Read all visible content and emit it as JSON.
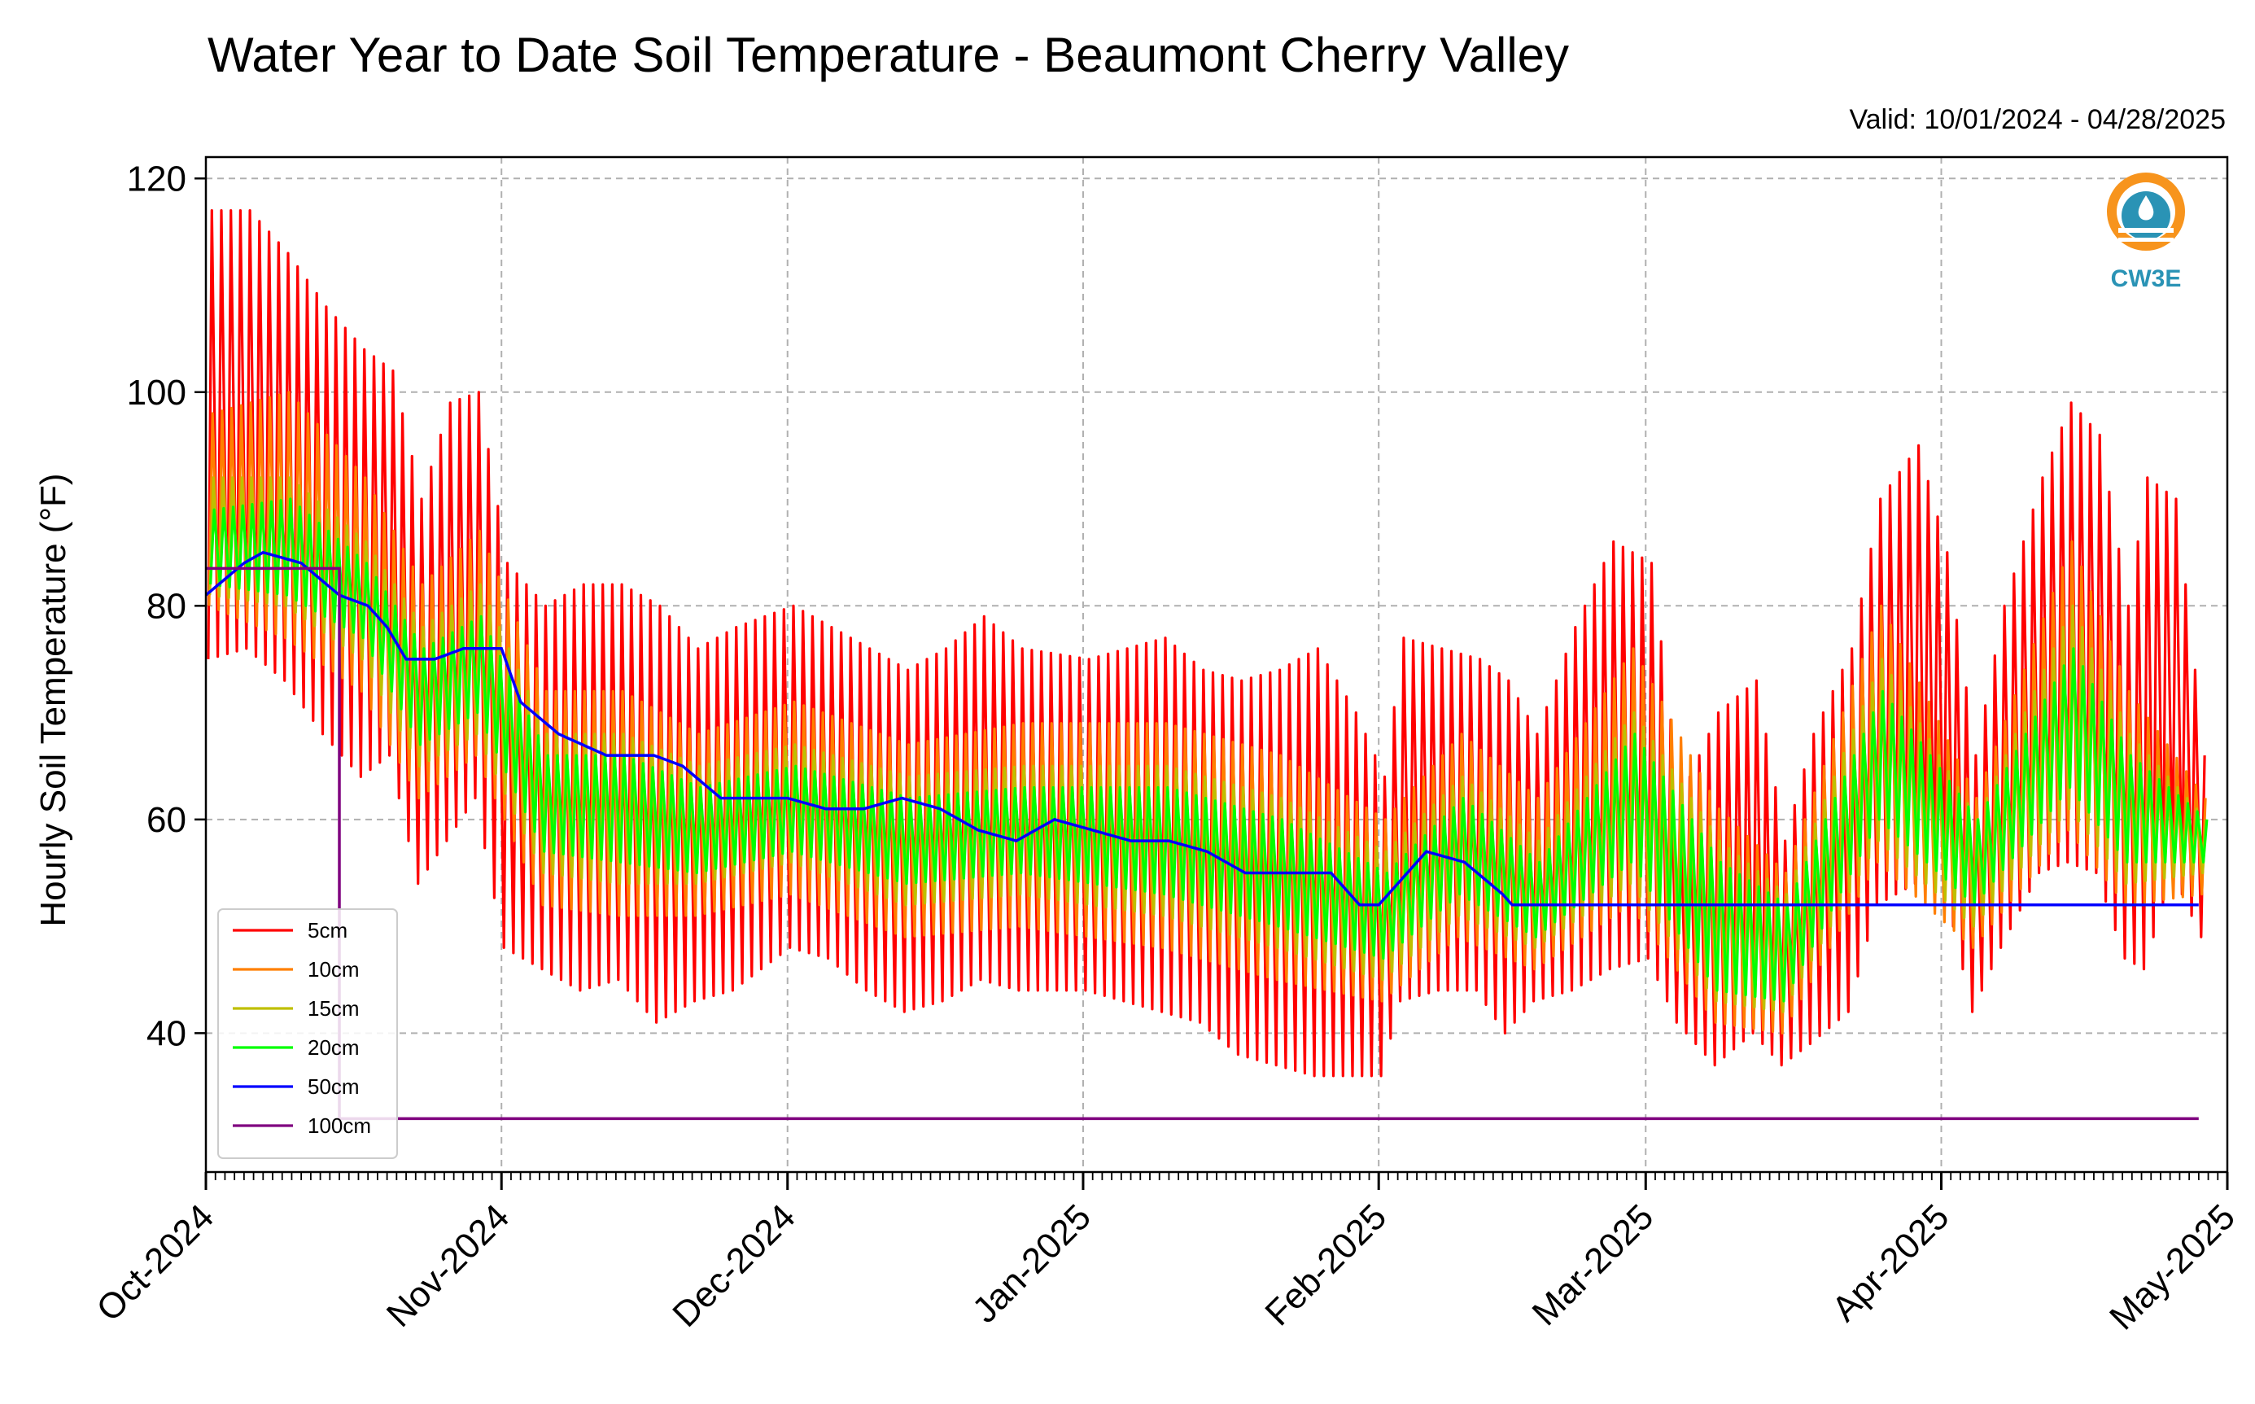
{
  "chart_data": {
    "type": "line",
    "title": "Water Year to Date Soil Temperature - Beaumont Cherry Valley",
    "subtitle": "Valid: 10/01/2024 - 04/28/2025",
    "ylabel": "Hourly Soil Temperature (°F)",
    "xlabel": "",
    "ylim": [
      27,
      122
    ],
    "xlim": [
      "2024-10-01",
      "2025-05-01"
    ],
    "yticks": [
      40,
      60,
      80,
      100,
      120
    ],
    "xticks": [
      "Oct-2024",
      "Nov-2024",
      "Dec-2024",
      "Jan-2025",
      "Feb-2025",
      "Mar-2025",
      "Apr-2025",
      "May-2025"
    ],
    "grid": true,
    "legend_position": "lower-left",
    "logo_text": "CW3E",
    "series_note": "Daily min/max envelope of hourly values (day index from Oct 1 2024)",
    "series": [
      {
        "name": "5cm",
        "color": "#ff0000",
        "daily": [
          [
            "2024-10-01",
            75,
            117
          ],
          [
            "2024-10-05",
            76,
            117
          ],
          [
            "2024-10-09",
            73,
            113
          ],
          [
            "2024-10-13",
            68,
            108
          ],
          [
            "2024-10-17",
            64,
            104
          ],
          [
            "2024-10-20",
            66,
            102
          ],
          [
            "2024-10-23",
            54,
            90
          ],
          [
            "2024-10-26",
            58,
            99
          ],
          [
            "2024-10-29",
            62,
            100
          ],
          [
            "2024-11-01",
            48,
            84
          ],
          [
            "2024-11-05",
            46,
            80
          ],
          [
            "2024-11-09",
            44,
            82
          ],
          [
            "2024-11-13",
            45,
            82
          ],
          [
            "2024-11-17",
            41,
            80
          ],
          [
            "2024-11-21",
            43,
            76
          ],
          [
            "2024-11-25",
            44,
            78
          ],
          [
            "2024-12-01",
            48,
            80
          ],
          [
            "2024-12-05",
            47,
            78
          ],
          [
            "2024-12-09",
            44,
            76
          ],
          [
            "2024-12-13",
            42,
            74
          ],
          [
            "2024-12-17",
            43,
            76
          ],
          [
            "2024-12-21",
            45,
            79
          ],
          [
            "2024-12-25",
            44,
            76
          ],
          [
            "2025-01-01",
            44,
            75
          ],
          [
            "2025-01-05",
            43,
            76
          ],
          [
            "2025-01-09",
            42,
            77
          ],
          [
            "2025-01-13",
            41,
            74
          ],
          [
            "2025-01-17",
            38,
            73
          ],
          [
            "2025-01-21",
            37,
            74
          ],
          [
            "2025-01-25",
            36,
            76
          ],
          [
            "2025-01-29",
            36,
            70
          ],
          [
            "2025-02-01",
            36,
            64
          ],
          [
            "2025-02-03",
            43,
            77
          ],
          [
            "2025-02-07",
            44,
            76
          ],
          [
            "2025-02-11",
            44,
            75
          ],
          [
            "2025-02-14",
            40,
            73
          ],
          [
            "2025-02-17",
            43,
            68
          ],
          [
            "2025-02-21",
            44,
            78
          ],
          [
            "2025-02-25",
            46,
            86
          ],
          [
            "2025-03-01",
            47,
            84
          ],
          [
            "2025-03-04",
            41,
            62
          ],
          [
            "2025-03-08",
            37,
            70
          ],
          [
            "2025-03-12",
            40,
            73
          ],
          [
            "2025-03-15",
            37,
            58
          ],
          [
            "2025-03-18",
            39,
            68
          ],
          [
            "2025-03-22",
            42,
            76
          ],
          [
            "2025-03-25",
            52,
            90
          ],
          [
            "2025-03-29",
            54,
            95
          ],
          [
            "2025-04-01",
            54,
            85
          ],
          [
            "2025-04-04",
            42,
            66
          ],
          [
            "2025-04-07",
            48,
            80
          ],
          [
            "2025-04-11",
            55,
            92
          ],
          [
            "2025-04-14",
            56,
            99
          ],
          [
            "2025-04-17",
            55,
            96
          ],
          [
            "2025-04-20",
            47,
            80
          ],
          [
            "2025-04-22",
            46,
            92
          ],
          [
            "2025-04-25",
            55,
            90
          ],
          [
            "2025-04-28",
            49,
            66
          ]
        ]
      },
      {
        "name": "10cm",
        "color": "#ff7f00",
        "daily": [
          [
            "2024-10-01",
            80,
            98
          ],
          [
            "2024-10-09",
            77,
            100
          ],
          [
            "2024-10-17",
            72,
            92
          ],
          [
            "2024-10-23",
            62,
            82
          ],
          [
            "2024-10-29",
            66,
            87
          ],
          [
            "2024-11-05",
            52,
            72
          ],
          [
            "2024-11-13",
            51,
            72
          ],
          [
            "2024-11-21",
            51,
            68
          ],
          [
            "2024-12-01",
            53,
            71
          ],
          [
            "2024-12-13",
            49,
            67
          ],
          [
            "2024-12-25",
            50,
            69
          ],
          [
            "2025-01-09",
            48,
            69
          ],
          [
            "2025-01-21",
            45,
            66
          ],
          [
            "2025-02-01",
            43,
            60
          ],
          [
            "2025-02-09",
            49,
            68
          ],
          [
            "2025-02-17",
            46,
            62
          ],
          [
            "2025-02-27",
            52,
            76
          ],
          [
            "2025-03-08",
            41,
            61
          ],
          [
            "2025-03-15",
            40,
            55
          ],
          [
            "2025-03-25",
            56,
            80
          ],
          [
            "2025-04-04",
            48,
            62
          ],
          [
            "2025-04-14",
            59,
            86
          ],
          [
            "2025-04-20",
            52,
            72
          ],
          [
            "2025-04-28",
            53,
            62
          ]
        ]
      },
      {
        "name": "15cm",
        "color": "#bfbf00",
        "daily": [
          [
            "2024-10-01",
            81,
            92
          ],
          [
            "2024-10-09",
            80,
            92
          ],
          [
            "2024-10-17",
            75,
            86
          ],
          [
            "2024-10-23",
            65,
            78
          ],
          [
            "2024-10-29",
            68,
            82
          ],
          [
            "2024-11-05",
            55,
            68
          ],
          [
            "2024-11-13",
            54,
            68
          ],
          [
            "2024-11-21",
            54,
            65
          ],
          [
            "2024-12-01",
            56,
            67
          ],
          [
            "2024-12-13",
            52,
            64
          ],
          [
            "2024-12-25",
            53,
            65
          ],
          [
            "2025-01-09",
            51,
            65
          ],
          [
            "2025-01-21",
            48,
            62
          ],
          [
            "2025-02-01",
            45,
            57
          ],
          [
            "2025-02-09",
            51,
            64
          ],
          [
            "2025-02-17",
            48,
            58
          ],
          [
            "2025-02-27",
            54,
            70
          ],
          [
            "2025-03-08",
            43,
            58
          ],
          [
            "2025-03-15",
            42,
            53
          ],
          [
            "2025-03-25",
            58,
            75
          ],
          [
            "2025-04-04",
            50,
            60
          ],
          [
            "2025-04-14",
            61,
            80
          ],
          [
            "2025-04-20",
            54,
            68
          ],
          [
            "2025-04-28",
            55,
            60
          ]
        ]
      },
      {
        "name": "20cm",
        "color": "#00ff00",
        "daily": [
          [
            "2024-10-01",
            82,
            89
          ],
          [
            "2024-10-09",
            81,
            90
          ],
          [
            "2024-10-17",
            77,
            84
          ],
          [
            "2024-10-23",
            67,
            76
          ],
          [
            "2024-10-29",
            70,
            79
          ],
          [
            "2024-11-05",
            57,
            66
          ],
          [
            "2024-11-13",
            56,
            66
          ],
          [
            "2024-11-21",
            55,
            63
          ],
          [
            "2024-12-01",
            57,
            65
          ],
          [
            "2024-12-13",
            54,
            62
          ],
          [
            "2024-12-25",
            55,
            63
          ],
          [
            "2025-01-09",
            53,
            63
          ],
          [
            "2025-01-21",
            50,
            60
          ],
          [
            "2025-02-01",
            47,
            55
          ],
          [
            "2025-02-09",
            53,
            62
          ],
          [
            "2025-02-17",
            49,
            56
          ],
          [
            "2025-02-27",
            56,
            68
          ],
          [
            "2025-03-08",
            44,
            56
          ],
          [
            "2025-03-15",
            43,
            52
          ],
          [
            "2025-03-25",
            60,
            72
          ],
          [
            "2025-04-04",
            52,
            60
          ],
          [
            "2025-04-14",
            63,
            76
          ],
          [
            "2025-04-20",
            56,
            66
          ],
          [
            "2025-04-28",
            56,
            60
          ]
        ]
      },
      {
        "name": "50cm",
        "color": "#0000ff",
        "daily": [
          [
            "2024-10-01",
            81
          ],
          [
            "2024-10-05",
            84
          ],
          [
            "2024-10-07",
            85
          ],
          [
            "2024-10-11",
            84
          ],
          [
            "2024-10-15",
            81
          ],
          [
            "2024-10-18",
            80
          ],
          [
            "2024-10-20",
            78
          ],
          [
            "2024-10-22",
            75
          ],
          [
            "2024-10-25",
            75
          ],
          [
            "2024-10-28",
            76
          ],
          [
            "2024-11-01",
            76
          ],
          [
            "2024-11-03",
            71
          ],
          [
            "2024-11-07",
            68
          ],
          [
            "2024-11-12",
            66
          ],
          [
            "2024-11-17",
            66
          ],
          [
            "2024-11-20",
            65
          ],
          [
            "2024-11-24",
            62
          ],
          [
            "2024-11-28",
            62
          ],
          [
            "2024-12-01",
            62
          ],
          [
            "2024-12-05",
            61
          ],
          [
            "2024-12-09",
            61
          ],
          [
            "2024-12-13",
            62
          ],
          [
            "2024-12-17",
            61
          ],
          [
            "2024-12-21",
            59
          ],
          [
            "2024-12-25",
            58
          ],
          [
            "2024-12-29",
            60
          ],
          [
            "2025-01-02",
            59
          ],
          [
            "2025-01-06",
            58
          ],
          [
            "2025-01-10",
            58
          ],
          [
            "2025-01-14",
            57
          ],
          [
            "2025-01-18",
            55
          ],
          [
            "2025-01-22",
            55
          ],
          [
            "2025-01-27",
            55
          ],
          [
            "2025-01-30",
            52
          ],
          [
            "2025-02-01",
            52
          ],
          [
            "2025-02-03",
            54
          ],
          [
            "2025-02-06",
            57
          ],
          [
            "2025-02-10",
            56
          ],
          [
            "2025-02-14",
            53
          ],
          [
            "2025-02-15",
            52
          ],
          [
            "2025-04-28",
            52
          ]
        ]
      },
      {
        "name": "100cm",
        "color": "#7f007f",
        "daily": [
          [
            "2024-10-01",
            83.5
          ],
          [
            "2024-10-15",
            83.5
          ],
          [
            "2024-10-15",
            32
          ],
          [
            "2025-04-28",
            32
          ]
        ]
      }
    ]
  }
}
